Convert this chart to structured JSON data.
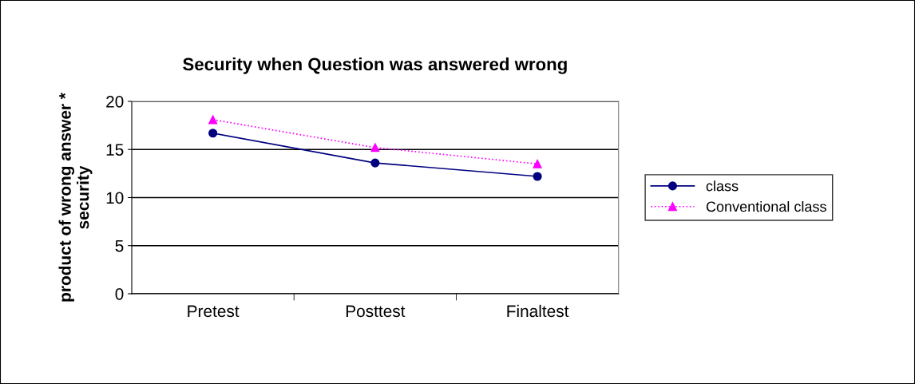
{
  "chart_data": {
    "type": "line",
    "title": "Security when Question was answered wrong",
    "ylabel": "product of wrong answer *\nsecurity",
    "categories": [
      "Pretest",
      "Posttest",
      "Finaltest"
    ],
    "series": [
      {
        "name": "class",
        "color": "#000080",
        "values": [
          16.7,
          13.6,
          12.2
        ],
        "marker": "circle",
        "line_style": "solid"
      },
      {
        "name": "Conventional class",
        "color": "#ff00ff",
        "values": [
          18.1,
          15.2,
          13.5
        ],
        "marker": "triangle",
        "line_style": "dotted"
      }
    ],
    "ylim": [
      0,
      20
    ],
    "yticks": [
      0,
      5,
      10,
      15,
      20
    ],
    "grid": "y",
    "legend": "right"
  }
}
